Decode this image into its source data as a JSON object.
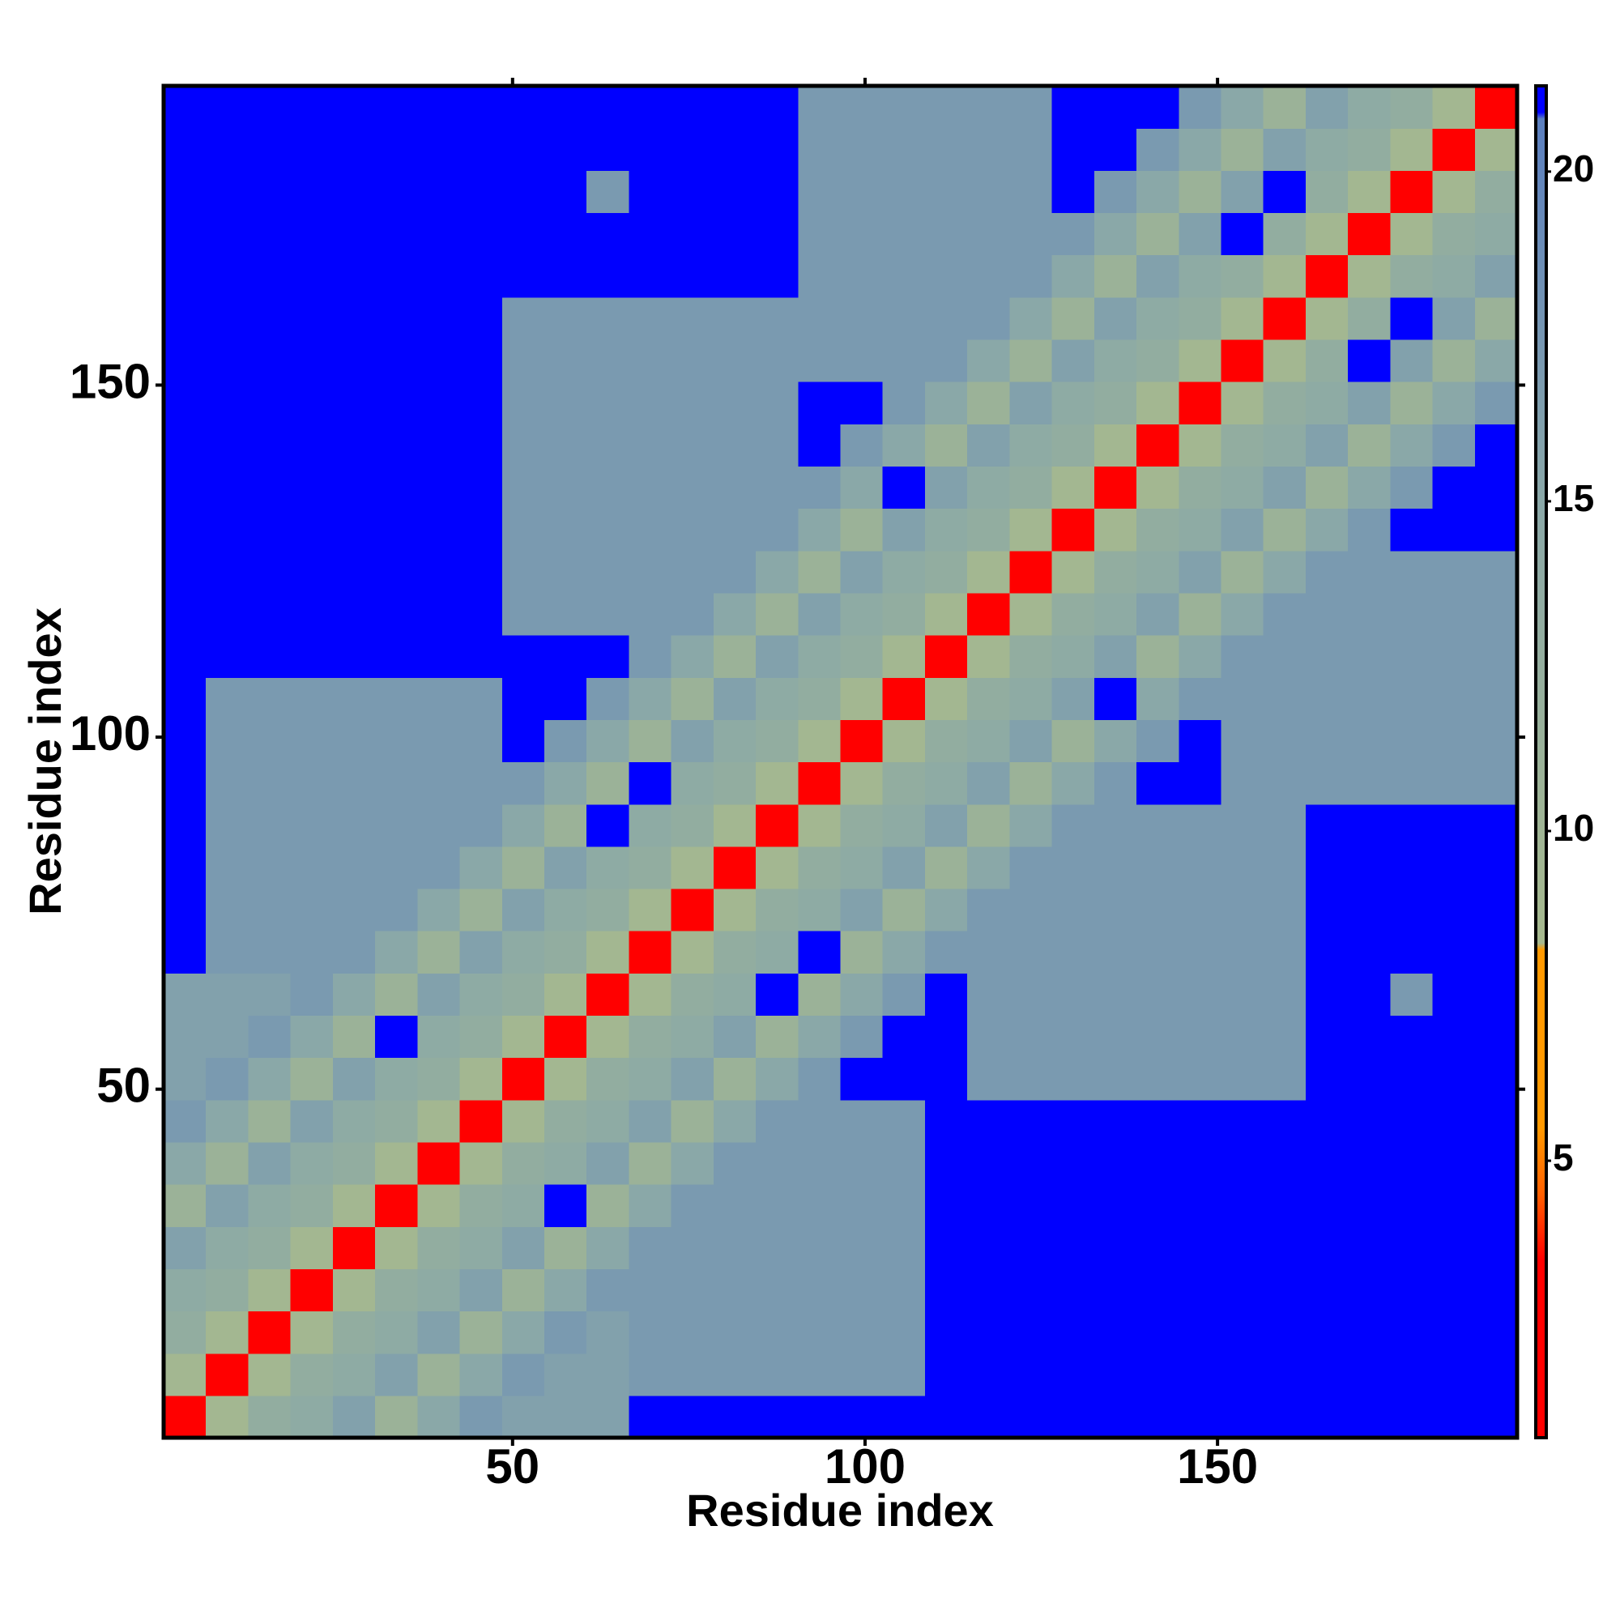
{
  "chart_data": {
    "type": "heatmap",
    "xlabel": "Residue index",
    "ylabel": "Residue index",
    "xlim": [
      0.5,
      192.5
    ],
    "ylim": [
      0.5,
      192.5
    ],
    "xticks": [
      50,
      100,
      150
    ],
    "yticks": [
      50,
      100,
      150
    ],
    "xbins": [
      0.5,
      6.5,
      12.5,
      18.5,
      24.5,
      30.5,
      36.5,
      42.5,
      48.5,
      54.5,
      60.5,
      66.5,
      72.5,
      78.5,
      84.5,
      90.5,
      96.5,
      102.5,
      108.5,
      114.5,
      120.5,
      126.5,
      132.5,
      138.5,
      144.5,
      150.5,
      156.5,
      162.5,
      168.5,
      174.5,
      180.5,
      186.5,
      192.5
    ],
    "ybins": [
      0.5,
      6.5,
      12.5,
      18.5,
      24.5,
      30.5,
      36.5,
      42.5,
      48.5,
      54.5,
      60.5,
      66.5,
      72.5,
      78.5,
      84.5,
      90.5,
      96.5,
      102.5,
      108.5,
      114.5,
      120.5,
      126.5,
      132.5,
      138.5,
      144.5,
      150.5,
      156.5,
      162.5,
      168.5,
      174.5,
      180.5,
      186.5,
      192.5
    ],
    "zlim": [
      0.8,
      21.3
    ],
    "zticks": [
      5,
      10,
      15,
      20
    ],
    "colorscale": [
      [
        0.8,
        "#ff0000"
      ],
      [
        3.5,
        "#ff0000"
      ],
      [
        4.5,
        "#ff6000"
      ],
      [
        5.5,
        "#ff9900"
      ],
      [
        8.2,
        "#ff9900"
      ],
      [
        8.3,
        "#a6b98e"
      ],
      [
        15,
        "#8aa8a8"
      ],
      [
        20.8,
        "#5b7fbf"
      ],
      [
        20.9,
        "#0000ff"
      ],
      [
        21.3,
        "#0000ff"
      ]
    ],
    "z": [
      [
        3,
        9,
        13,
        14,
        16,
        11,
        15,
        17,
        16,
        16,
        16,
        21,
        21,
        21,
        21,
        21,
        21,
        21,
        21,
        21,
        21,
        21,
        21,
        21,
        21,
        21,
        21,
        21,
        21,
        21,
        21,
        21
      ],
      [
        9,
        3,
        9,
        13,
        14,
        16,
        11,
        15,
        17,
        16,
        16,
        17,
        17,
        17,
        17,
        17,
        17,
        17,
        21,
        21,
        21,
        21,
        21,
        21,
        21,
        21,
        21,
        21,
        21,
        21,
        21,
        21
      ],
      [
        13,
        9,
        3,
        9,
        13,
        14,
        16,
        11,
        15,
        17,
        16,
        17,
        17,
        17,
        17,
        17,
        17,
        17,
        21,
        21,
        21,
        21,
        21,
        21,
        21,
        21,
        21,
        21,
        21,
        21,
        21,
        21
      ],
      [
        14,
        13,
        9,
        3,
        9,
        13,
        14,
        16,
        11,
        15,
        17,
        17,
        17,
        17,
        17,
        17,
        17,
        17,
        21,
        21,
        21,
        21,
        21,
        21,
        21,
        21,
        21,
        21,
        21,
        21,
        21,
        21
      ],
      [
        16,
        14,
        13,
        9,
        3,
        9,
        13,
        14,
        16,
        11,
        15,
        17,
        17,
        17,
        17,
        17,
        17,
        17,
        21,
        21,
        21,
        21,
        21,
        21,
        21,
        21,
        21,
        21,
        21,
        21,
        21,
        21
      ],
      [
        11,
        16,
        14,
        13,
        9,
        3,
        9,
        13,
        14,
        21,
        11,
        15,
        17,
        17,
        17,
        17,
        17,
        17,
        21,
        21,
        21,
        21,
        21,
        21,
        21,
        21,
        21,
        21,
        21,
        21,
        21,
        21
      ],
      [
        15,
        11,
        16,
        14,
        13,
        9,
        3,
        9,
        13,
        14,
        16,
        11,
        15,
        17,
        17,
        17,
        17,
        17,
        21,
        21,
        21,
        21,
        21,
        21,
        21,
        21,
        21,
        21,
        21,
        21,
        21,
        21
      ],
      [
        17,
        15,
        11,
        16,
        14,
        13,
        9,
        3,
        9,
        13,
        14,
        16,
        11,
        15,
        17,
        17,
        17,
        17,
        21,
        21,
        21,
        21,
        21,
        21,
        21,
        21,
        21,
        21,
        21,
        21,
        21,
        21
      ],
      [
        16,
        17,
        15,
        11,
        16,
        14,
        13,
        9,
        3,
        9,
        13,
        14,
        16,
        11,
        15,
        17,
        21,
        21,
        21,
        17,
        17,
        17,
        17,
        17,
        17,
        17,
        17,
        21,
        21,
        21,
        21,
        21
      ],
      [
        16,
        16,
        17,
        15,
        11,
        21,
        14,
        13,
        9,
        3,
        9,
        13,
        14,
        16,
        11,
        15,
        17,
        21,
        21,
        17,
        17,
        17,
        17,
        17,
        17,
        17,
        17,
        21,
        21,
        21,
        21,
        21
      ],
      [
        16,
        16,
        16,
        17,
        15,
        11,
        16,
        14,
        13,
        9,
        3,
        9,
        13,
        14,
        21,
        11,
        15,
        17,
        21,
        17,
        17,
        17,
        17,
        17,
        17,
        17,
        17,
        21,
        21,
        17,
        21,
        21
      ],
      [
        21,
        17,
        17,
        17,
        17,
        15,
        11,
        16,
        14,
        13,
        9,
        3,
        9,
        13,
        14,
        21,
        11,
        15,
        17,
        17,
        17,
        17,
        17,
        17,
        17,
        17,
        17,
        21,
        21,
        21,
        21,
        21
      ],
      [
        21,
        17,
        17,
        17,
        17,
        17,
        15,
        11,
        16,
        14,
        13,
        9,
        3,
        9,
        13,
        14,
        16,
        11,
        15,
        17,
        17,
        17,
        17,
        17,
        17,
        17,
        17,
        21,
        21,
        21,
        21,
        21
      ],
      [
        21,
        17,
        17,
        17,
        17,
        17,
        17,
        15,
        11,
        16,
        14,
        13,
        9,
        3,
        9,
        13,
        14,
        16,
        11,
        15,
        17,
        17,
        17,
        17,
        17,
        17,
        17,
        21,
        21,
        21,
        21,
        21
      ],
      [
        21,
        17,
        17,
        17,
        17,
        17,
        17,
        17,
        15,
        11,
        21,
        14,
        13,
        9,
        3,
        9,
        13,
        14,
        16,
        11,
        15,
        17,
        17,
        17,
        17,
        17,
        17,
        21,
        21,
        21,
        21,
        21
      ],
      [
        21,
        17,
        17,
        17,
        17,
        17,
        17,
        17,
        17,
        15,
        11,
        21,
        14,
        13,
        9,
        3,
        9,
        13,
        14,
        16,
        11,
        15,
        17,
        21,
        21,
        17,
        17,
        17,
        17,
        17,
        17,
        17
      ],
      [
        21,
        17,
        17,
        17,
        17,
        17,
        17,
        17,
        21,
        17,
        15,
        11,
        16,
        14,
        13,
        9,
        3,
        9,
        13,
        14,
        16,
        11,
        15,
        17,
        21,
        17,
        17,
        17,
        17,
        17,
        17,
        17
      ],
      [
        21,
        17,
        17,
        17,
        17,
        17,
        17,
        17,
        21,
        21,
        17,
        15,
        11,
        16,
        14,
        13,
        9,
        3,
        9,
        13,
        14,
        16,
        21,
        15,
        17,
        17,
        17,
        17,
        17,
        17,
        17,
        17
      ],
      [
        21,
        21,
        21,
        21,
        21,
        21,
        21,
        21,
        21,
        21,
        21,
        17,
        15,
        11,
        16,
        14,
        13,
        9,
        3,
        9,
        13,
        14,
        16,
        11,
        15,
        17,
        17,
        17,
        17,
        17,
        17,
        17
      ],
      [
        21,
        21,
        21,
        21,
        21,
        21,
        21,
        21,
        17,
        17,
        17,
        17,
        17,
        15,
        11,
        16,
        14,
        13,
        9,
        3,
        9,
        13,
        14,
        16,
        11,
        15,
        17,
        17,
        17,
        17,
        17,
        17
      ],
      [
        21,
        21,
        21,
        21,
        21,
        21,
        21,
        21,
        17,
        17,
        17,
        17,
        17,
        17,
        15,
        11,
        16,
        14,
        13,
        9,
        3,
        9,
        13,
        14,
        16,
        11,
        15,
        17,
        17,
        17,
        17,
        17
      ],
      [
        21,
        21,
        21,
        21,
        21,
        21,
        21,
        21,
        17,
        17,
        17,
        17,
        17,
        17,
        17,
        15,
        11,
        16,
        14,
        13,
        9,
        3,
        9,
        13,
        14,
        16,
        11,
        15,
        17,
        21,
        21,
        21
      ],
      [
        21,
        21,
        21,
        21,
        21,
        21,
        21,
        21,
        17,
        17,
        17,
        17,
        17,
        17,
        17,
        17,
        15,
        21,
        16,
        14,
        13,
        9,
        3,
        9,
        13,
        14,
        16,
        11,
        15,
        17,
        21,
        21
      ],
      [
        21,
        21,
        21,
        21,
        21,
        21,
        21,
        21,
        17,
        17,
        17,
        17,
        17,
        17,
        17,
        21,
        17,
        15,
        11,
        16,
        14,
        13,
        9,
        3,
        9,
        13,
        14,
        16,
        11,
        15,
        17,
        21
      ],
      [
        21,
        21,
        21,
        21,
        21,
        21,
        21,
        21,
        17,
        17,
        17,
        17,
        17,
        17,
        17,
        21,
        21,
        17,
        15,
        11,
        16,
        14,
        13,
        9,
        3,
        9,
        13,
        14,
        16,
        11,
        15,
        17
      ],
      [
        21,
        21,
        21,
        21,
        21,
        21,
        21,
        21,
        17,
        17,
        17,
        17,
        17,
        17,
        17,
        17,
        17,
        17,
        17,
        15,
        11,
        16,
        14,
        13,
        9,
        3,
        9,
        13,
        21,
        16,
        11,
        15
      ],
      [
        21,
        21,
        21,
        21,
        21,
        21,
        21,
        21,
        17,
        17,
        17,
        17,
        17,
        17,
        17,
        17,
        17,
        17,
        17,
        17,
        15,
        11,
        16,
        14,
        13,
        9,
        3,
        9,
        13,
        21,
        16,
        11
      ],
      [
        21,
        21,
        21,
        21,
        21,
        21,
        21,
        21,
        21,
        21,
        21,
        21,
        21,
        21,
        21,
        17,
        17,
        17,
        17,
        17,
        17,
        15,
        11,
        16,
        14,
        13,
        9,
        3,
        9,
        13,
        14,
        16
      ],
      [
        21,
        21,
        21,
        21,
        21,
        21,
        21,
        21,
        21,
        21,
        21,
        21,
        21,
        21,
        21,
        17,
        17,
        17,
        17,
        17,
        17,
        17,
        15,
        11,
        16,
        21,
        13,
        9,
        3,
        9,
        13,
        14
      ],
      [
        21,
        21,
        21,
        21,
        21,
        21,
        21,
        21,
        21,
        21,
        17,
        21,
        21,
        21,
        21,
        17,
        17,
        17,
        17,
        17,
        17,
        21,
        17,
        15,
        11,
        16,
        21,
        13,
        9,
        3,
        9,
        13
      ],
      [
        21,
        21,
        21,
        21,
        21,
        21,
        21,
        21,
        21,
        21,
        21,
        21,
        21,
        21,
        21,
        17,
        17,
        17,
        17,
        17,
        17,
        21,
        21,
        17,
        15,
        11,
        16,
        14,
        13,
        9,
        3,
        9
      ],
      [
        21,
        21,
        21,
        21,
        21,
        21,
        21,
        21,
        21,
        21,
        21,
        21,
        21,
        21,
        21,
        17,
        17,
        17,
        17,
        17,
        17,
        21,
        21,
        21,
        17,
        15,
        11,
        16,
        14,
        13,
        9,
        3
      ]
    ]
  }
}
